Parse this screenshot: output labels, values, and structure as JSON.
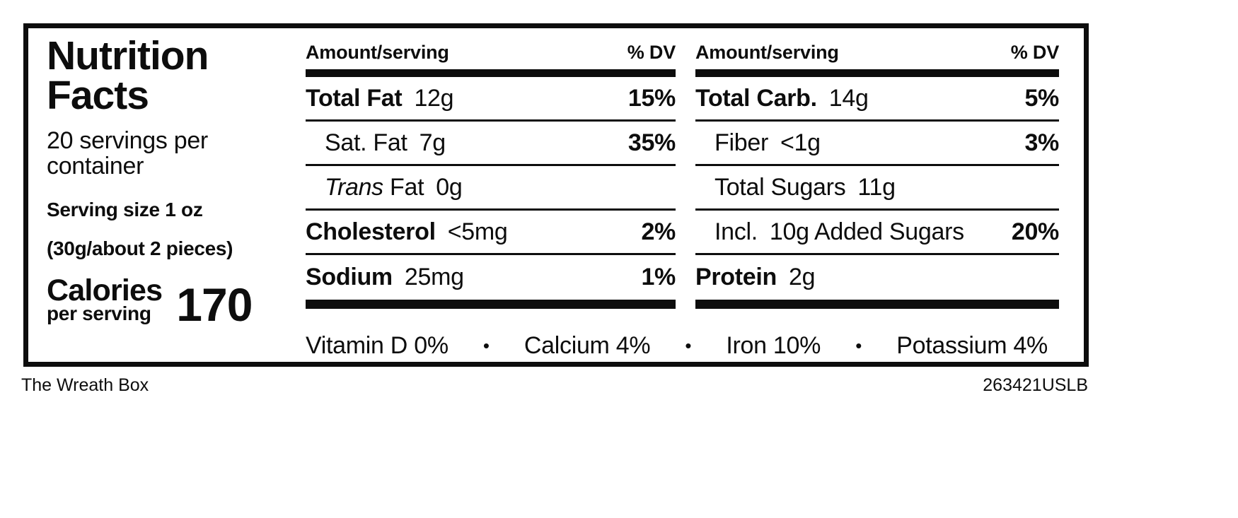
{
  "label": {
    "title": "Nutrition Facts",
    "servings_per_container": "20 servings per container",
    "serving_size": "Serving size 1 oz",
    "serving_size_detail": "(30g/about 2 pieces)",
    "calories_label": "Calories",
    "calories_sub_label": "per serving",
    "calories_value": "170"
  },
  "columns": [
    {
      "header": {
        "amount": "Amount/serving",
        "dv": "% DV"
      },
      "rows": [
        {
          "name": "Total Fat",
          "value": "12g",
          "dv": "15%",
          "bold": true,
          "indent": false
        },
        {
          "name": "Sat. Fat",
          "value": "7g",
          "dv": "35%",
          "bold": false,
          "indent": true
        },
        {
          "name_italic_prefix": "Trans",
          "name": "Fat",
          "value": "0g",
          "dv": "",
          "bold": false,
          "indent": true
        },
        {
          "name": "Cholesterol",
          "value": "<5mg",
          "dv": "2%",
          "bold": true,
          "indent": false
        },
        {
          "name": "Sodium",
          "value": "25mg",
          "dv": "1%",
          "bold": true,
          "indent": false
        }
      ]
    },
    {
      "header": {
        "amount": "Amount/serving",
        "dv": "% DV"
      },
      "rows": [
        {
          "name": "Total Carb.",
          "value": "14g",
          "dv": "5%",
          "bold": true,
          "indent": false
        },
        {
          "name": "Fiber",
          "value": "<1g",
          "dv": "3%",
          "bold": false,
          "indent": true
        },
        {
          "name": "Total Sugars",
          "value": "11g",
          "dv": "",
          "bold": false,
          "indent": true
        },
        {
          "name": "Incl.",
          "value": "10g Added Sugars",
          "dv": "20%",
          "bold": false,
          "indent": true
        },
        {
          "name": "Protein",
          "value": "2g",
          "dv": "",
          "bold": true,
          "indent": false
        }
      ]
    }
  ],
  "micronutrients": {
    "separator": "•",
    "items": [
      "Vitamin D 0%",
      "Calcium 4%",
      "Iron 10%",
      "Potassium 4%"
    ]
  },
  "footer": {
    "left": "The Wreath Box",
    "right": "263421USLB"
  },
  "colors": {
    "ink": "#0d0d0d",
    "background": "#ffffff"
  }
}
